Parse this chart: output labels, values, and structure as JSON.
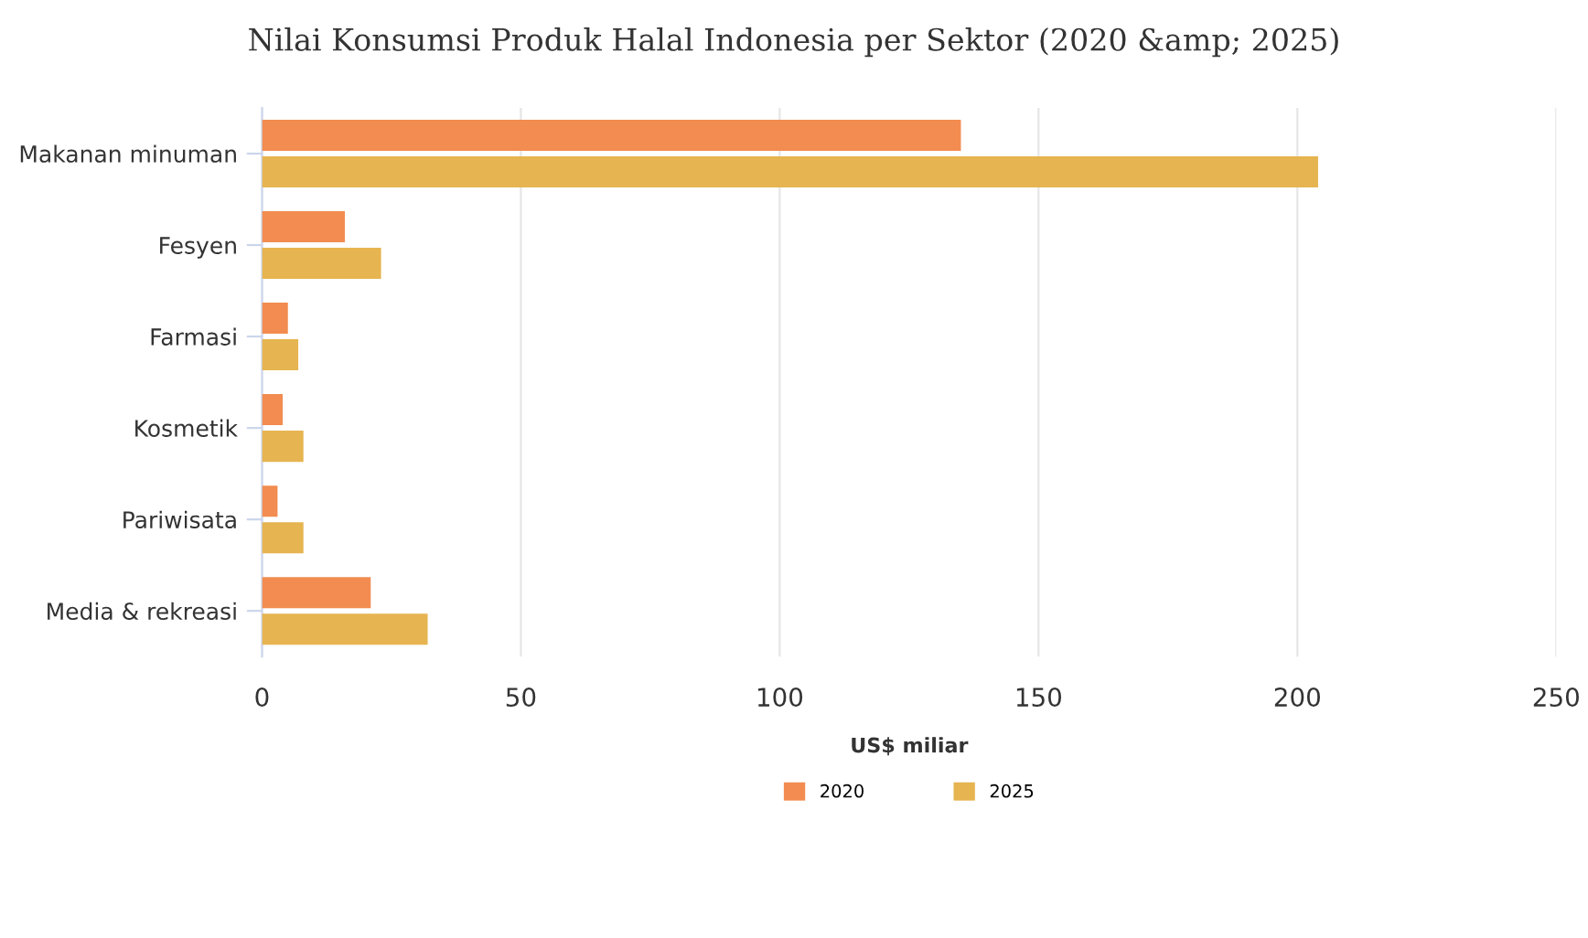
{
  "chart_data": {
    "type": "bar",
    "orientation": "horizontal",
    "title": "Nilai Konsumsi Produk Halal Indonesia per Sektor (2020 &amp; 2025)",
    "xlabel": "US$ miliar",
    "categories": [
      "Makanan minuman",
      "Fesyen",
      "Farmasi",
      "Kosmetik",
      "Pariwisata",
      "Media & rekreasi"
    ],
    "series": [
      {
        "name": "2020",
        "color": "#f28c50",
        "values": [
          135,
          16,
          5,
          4,
          3,
          21
        ]
      },
      {
        "name": "2025",
        "color": "#e6b450",
        "values": [
          204,
          23,
          7,
          8,
          8,
          32
        ]
      }
    ],
    "xlim": [
      0,
      250
    ],
    "xticks": [
      0,
      50,
      100,
      150,
      200,
      250
    ],
    "grid": "x",
    "legend": "bottom"
  }
}
